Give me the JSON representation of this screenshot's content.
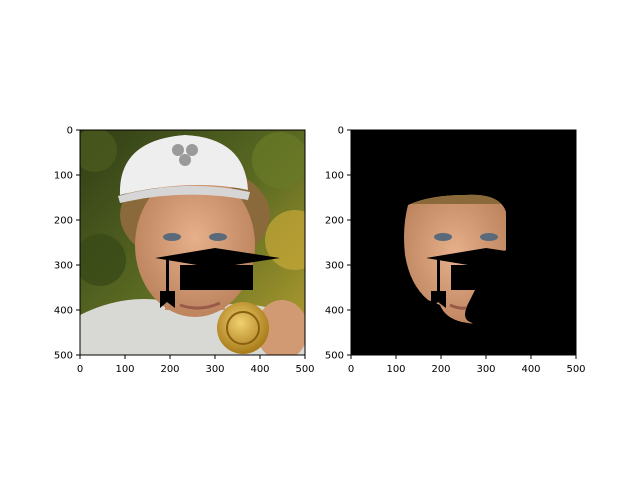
{
  "figure": {
    "background": "#ffffff",
    "axis_color": "#000000"
  },
  "panels": [
    {
      "id": "left",
      "description_icons": [
        "portrait-photo",
        "graduation-cap-overlay"
      ],
      "x_ticks": [
        "0",
        "100",
        "200",
        "300",
        "400",
        "500"
      ],
      "y_ticks": [
        "0",
        "100",
        "200",
        "300",
        "400",
        "500"
      ]
    },
    {
      "id": "right",
      "description_icons": [
        "face-mask-photo",
        "graduation-cap-overlay"
      ],
      "x_ticks": [
        "0",
        "100",
        "200",
        "300",
        "400",
        "500"
      ],
      "y_ticks": [
        "0",
        "100",
        "200",
        "300",
        "400",
        "500"
      ]
    }
  ],
  "colors": {
    "foliage_dark": "#3b4a1c",
    "foliage_light": "#8a8a2a",
    "skin": "#d9a27a",
    "skin_shadow": "#b9805a",
    "hair": "#8a6a3a",
    "cap": "#eeeeee",
    "hoodie": "#d8d8d4",
    "medal": "#d4a431",
    "mask_bg": "#000000"
  }
}
